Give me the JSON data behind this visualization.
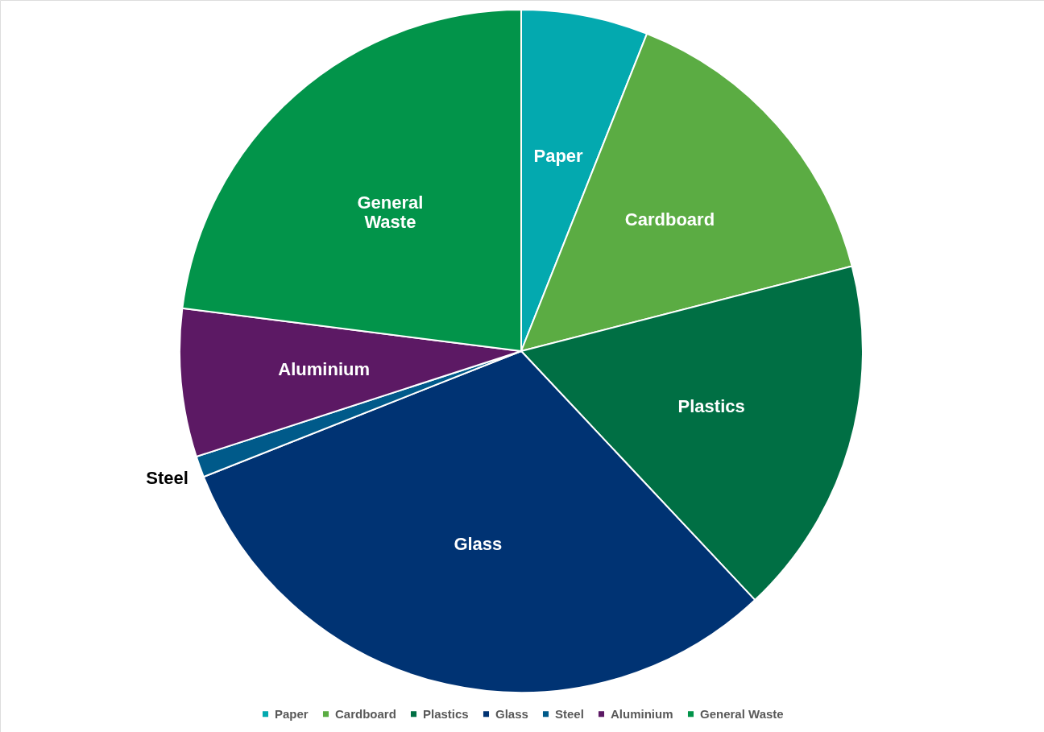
{
  "chart_data": {
    "type": "pie",
    "categories": [
      "Paper",
      "Cardboard",
      "Plastics",
      "Glass",
      "Steel",
      "Aluminium",
      "General Waste"
    ],
    "values": [
      6,
      15,
      17,
      31,
      1,
      7,
      23
    ],
    "colors": [
      "#03a9af",
      "#5bac43",
      "#006f44",
      "#003373",
      "#005a8a",
      "#5c1964",
      "#02944a"
    ],
    "legend": "bottom"
  }
}
